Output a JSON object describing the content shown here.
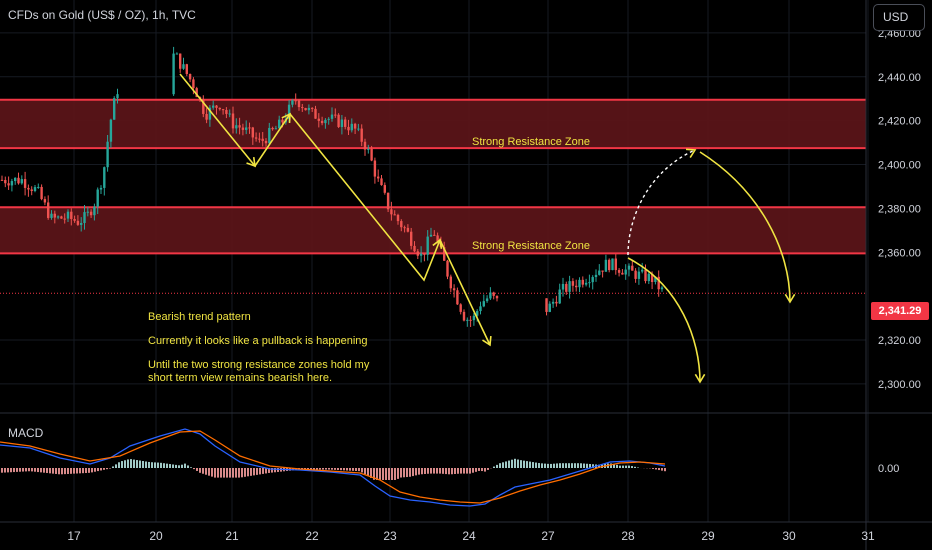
{
  "header": {
    "symbol_title": "CFDs on Gold (US$ / OZ), 1h, TVC",
    "currency_label": "USD"
  },
  "colors": {
    "background": "#000000",
    "up_candle": "#26a69a",
    "down_candle": "#ef5350",
    "resistance_zone_fill": "#5a1418",
    "resistance_line": "#f23645",
    "annotation": "#f0e442",
    "macd_line": "#2962ff",
    "signal_line": "#ff6d00",
    "price_tag": "#f23645"
  },
  "annotations": {
    "zone_upper_label": "Strong Resistance Zone",
    "zone_lower_label": "Strong Resistance Zone",
    "note_line1": "Bearish trend pattern",
    "note_line2": "Currently it looks like a pullback is happening",
    "note_line3a": "Until the two strong resistance zones hold my",
    "note_line3b": "short term view remains bearish here."
  },
  "macd": {
    "label": "MACD",
    "zero_label": "0.00"
  },
  "chart_data": {
    "type": "candlestick",
    "title": "CFDs on Gold (US$ / OZ), 1h, TVC",
    "currency": "USD",
    "x_ticks": [
      "17",
      "20",
      "21",
      "22",
      "23",
      "24",
      "27",
      "28",
      "29",
      "30",
      "31"
    ],
    "y_ticks": [
      "2,460.00",
      "2,440.00",
      "2,420.00",
      "2,400.00",
      "2,380.00",
      "2,360.00",
      "2,320.00",
      "2,300.00"
    ],
    "ylim": [
      2289,
      2475
    ],
    "last_price": 2341.29,
    "last_price_label": "2,341.29",
    "resistance_zones": [
      {
        "top": 2429.5,
        "bottom": 2407.5,
        "label": "Strong Resistance Zone"
      },
      {
        "top": 2380.5,
        "bottom": 2359.5,
        "label": "Strong Resistance Zone"
      }
    ],
    "close_path": [
      [
        16.3,
        2393
      ],
      [
        16.5,
        2388
      ],
      [
        16.7,
        2375
      ],
      [
        16.9,
        2376
      ],
      [
        17.1,
        2374
      ],
      [
        17.3,
        2376
      ],
      [
        17.5,
        2383
      ],
      [
        17.7,
        2396
      ],
      [
        17.85,
        2418
      ],
      [
        18.05,
        2434
      ],
      [
        20.25,
        2450
      ],
      [
        20.5,
        2436
      ],
      [
        20.65,
        2423
      ],
      [
        20.85,
        2428
      ],
      [
        21.0,
        2419
      ],
      [
        21.15,
        2416
      ],
      [
        21.35,
        2410
      ],
      [
        21.6,
        2418
      ],
      [
        21.8,
        2430
      ],
      [
        22.0,
        2423
      ],
      [
        22.2,
        2421
      ],
      [
        22.4,
        2419
      ],
      [
        22.55,
        2416
      ],
      [
        22.7,
        2408
      ],
      [
        22.85,
        2392
      ],
      [
        23.0,
        2379
      ],
      [
        23.2,
        2370
      ],
      [
        23.4,
        2358
      ],
      [
        23.55,
        2370
      ],
      [
        23.75,
        2348
      ],
      [
        23.95,
        2330
      ],
      [
        24.1,
        2329
      ],
      [
        24.3,
        2337
      ],
      [
        24.55,
        2340
      ],
      [
        24.75,
        2337
      ],
      [
        27.0,
        2334
      ],
      [
        27.15,
        2342
      ],
      [
        27.35,
        2346
      ],
      [
        27.55,
        2350
      ],
      [
        27.75,
        2355
      ],
      [
        27.95,
        2352
      ],
      [
        28.1,
        2350
      ],
      [
        28.3,
        2348
      ],
      [
        28.45,
        2341.3
      ]
    ]
  }
}
